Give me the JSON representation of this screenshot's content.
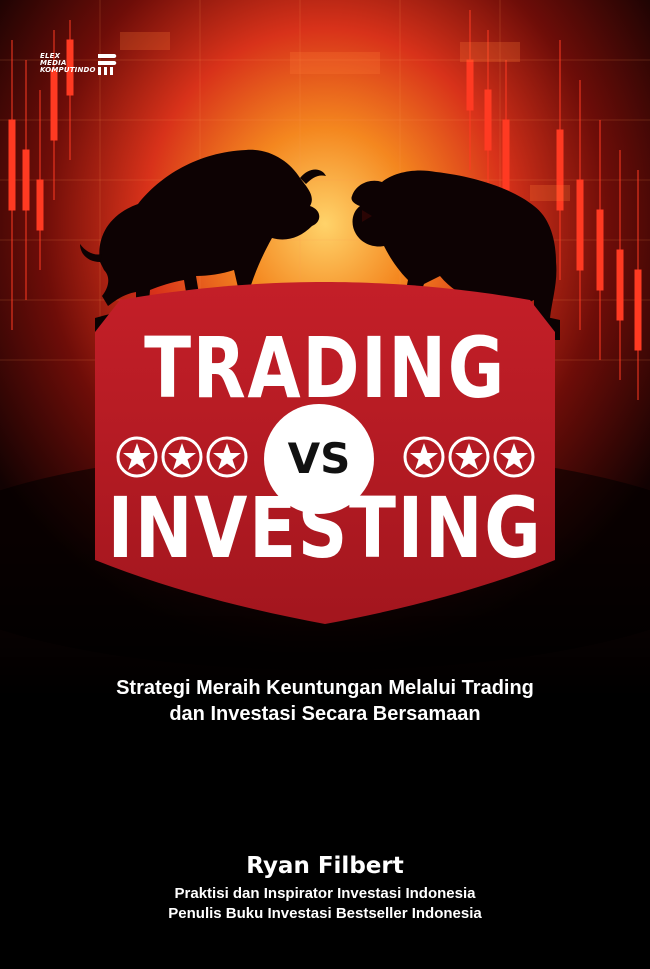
{
  "publisher": {
    "line1": "ELEX",
    "line2": "MEDIA",
    "line3": "KOMPUTINDO",
    "logo_icon": "publisher-logo-icon"
  },
  "title": {
    "top": "TRADING",
    "vs": "VS",
    "bottom": "INVESTING"
  },
  "subtitle": {
    "line1": "Strategi Meraih Keuntungan Melalui Trading",
    "line2": "dan Investasi Secara Bersamaan"
  },
  "author": {
    "name": "Ryan Filbert",
    "role1": "Praktisi dan Inspirator Investasi Indonesia",
    "role2": "Penulis Buku Investasi Bestseller Indonesia"
  },
  "colors": {
    "background": "#000000",
    "shield_red": "#c8202a",
    "fire_orange": "#e8501a",
    "text": "#ffffff"
  },
  "icons": {
    "bull": "bull-silhouette-icon",
    "bear": "bear-silhouette-icon",
    "star": "star-icon"
  }
}
